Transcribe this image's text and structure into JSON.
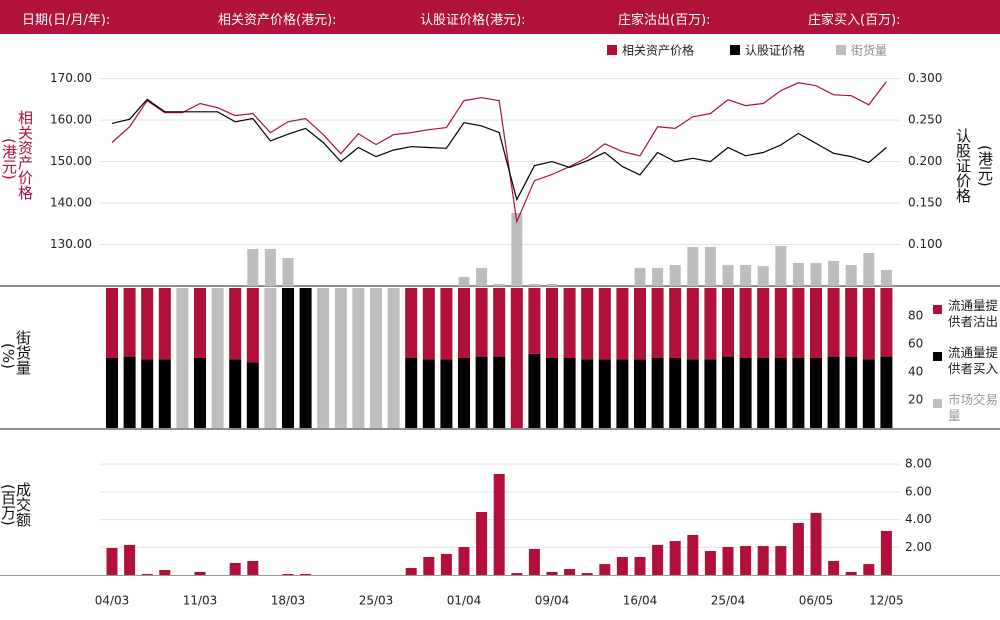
{
  "header": {
    "fields": [
      "日期(日/月/年):",
      "相关资产价格(港元):",
      "认股证价格(港元):",
      "庄家沽出(百万):",
      "庄家买入(百万):"
    ]
  },
  "chart_data": [
    {
      "type": "line",
      "ylabel": "相关资产价格",
      "yunit": "(港元)",
      "y2label": "认股证价格",
      "y2unit": "(港元)",
      "ylim": [
        120,
        174.5
      ],
      "yticks": [
        {
          "value": 130,
          "label": "130.00"
        },
        {
          "value": 140,
          "label": "140.00"
        },
        {
          "value": 150,
          "label": "150.00"
        },
        {
          "value": 160,
          "label": "160.00"
        },
        {
          "value": 170,
          "label": "170.00"
        }
      ],
      "y2lim": [
        0.05,
        0.3225
      ],
      "y2ticks": [
        {
          "value": 0.1,
          "label": "0.100"
        },
        {
          "value": 0.15,
          "label": "0.150"
        },
        {
          "value": 0.2,
          "label": "0.200"
        },
        {
          "value": 0.25,
          "label": "0.250"
        },
        {
          "value": 0.3,
          "label": "0.300"
        }
      ],
      "y3lim": [
        0,
        100
      ],
      "grid": true,
      "series": [
        {
          "name": "相关资产价格",
          "color": "#b0103a",
          "values": [
            154.6,
            158.4,
            164.7,
            161.8,
            161.8,
            164.0,
            163.0,
            161.1,
            161.6,
            157.0,
            159.6,
            160.4,
            156.5,
            151.9,
            156.7,
            154.1,
            156.5,
            157.0,
            157.7,
            158.2,
            164.7,
            165.4,
            164.7,
            135.5,
            145.4,
            146.9,
            148.8,
            151.0,
            154.3,
            152.4,
            151.4,
            158.4,
            158.0,
            160.8,
            161.6,
            164.9,
            163.5,
            164.0,
            167.1,
            169.0,
            168.3,
            166.1,
            165.9,
            163.7,
            169.3
          ]
        },
        {
          "name": "认股证价格",
          "color": "#000000",
          "axis": "y2",
          "values": [
            0.246,
            0.251,
            0.275,
            0.26,
            0.26,
            0.26,
            0.26,
            0.248,
            0.252,
            0.225,
            0.233,
            0.24,
            0.223,
            0.2,
            0.217,
            0.206,
            0.214,
            0.218,
            0.217,
            0.216,
            0.247,
            0.243,
            0.235,
            0.154,
            0.195,
            0.2,
            0.193,
            0.201,
            0.211,
            0.194,
            0.184,
            0.211,
            0.2,
            0.204,
            0.2,
            0.217,
            0.207,
            0.211,
            0.22,
            0.234,
            0.222,
            0.21,
            0.206,
            0.199,
            0.217
          ]
        },
        {
          "name": "街货量",
          "color": "#bdbdbd",
          "type": "bar",
          "axis": "y3",
          "values": [
            0,
            0,
            0,
            0,
            0,
            0,
            0,
            0,
            16.4,
            16.4,
            12.4,
            0,
            0,
            0,
            0,
            0,
            0,
            0,
            0,
            0,
            4.0,
            8.0,
            0.9,
            32.3,
            0.9,
            0.9,
            0,
            0,
            0,
            0,
            8.0,
            8.0,
            9.3,
            17.3,
            17.3,
            9.3,
            9.3,
            8.8,
            17.7,
            10.2,
            10.2,
            11.1,
            9.3,
            14.6,
            7.1
          ]
        }
      ]
    },
    {
      "type": "stacked_bar",
      "ylabel": "街货量",
      "yunit": "(%)",
      "ylim": [
        0,
        100
      ],
      "yticks": [
        20,
        40,
        60,
        80
      ],
      "series": [
        {
          "name": "流通量提供者沽出",
          "color": "#b0103a",
          "values": [
            50,
            49,
            51,
            51,
            0,
            50,
            0,
            51,
            53,
            0,
            0,
            0,
            0,
            0,
            0,
            0,
            0,
            50,
            51,
            51,
            50,
            49,
            49,
            100,
            47,
            50,
            50,
            51,
            51,
            51,
            51,
            50,
            50,
            51,
            51,
            49,
            50,
            50,
            50,
            50,
            50,
            49,
            49,
            51,
            49
          ]
        },
        {
          "name": "流通量提供者买入",
          "color": "#000000",
          "values": [
            50,
            51,
            49,
            49,
            0,
            50,
            0,
            49,
            47,
            0,
            100,
            100,
            0,
            0,
            0,
            0,
            0,
            50,
            49,
            49,
            50,
            51,
            51,
            0,
            53,
            50,
            50,
            49,
            49,
            49,
            49,
            50,
            50,
            49,
            49,
            51,
            50,
            50,
            50,
            50,
            50,
            51,
            51,
            49,
            51
          ]
        },
        {
          "name": "市场交易量",
          "color": "#bdbdbd",
          "values": [
            0,
            0,
            0,
            0,
            100,
            0,
            100,
            0,
            0,
            100,
            0,
            0,
            100,
            100,
            100,
            100,
            100,
            0,
            0,
            0,
            0,
            0,
            0,
            0,
            0,
            0,
            0,
            0,
            0,
            0,
            0,
            0,
            0,
            0,
            0,
            0,
            0,
            0,
            0,
            0,
            0,
            0,
            0,
            0,
            0
          ]
        }
      ]
    },
    {
      "type": "bar",
      "ylabel": "成交额",
      "yunit": "(百万)",
      "categories": [
        "04/03",
        null,
        null,
        null,
        null,
        "11/03",
        null,
        null,
        null,
        null,
        "18/03",
        null,
        null,
        null,
        null,
        "25/03",
        null,
        null,
        null,
        null,
        "01/04",
        null,
        null,
        null,
        null,
        "09/04",
        null,
        null,
        null,
        null,
        "16/04",
        null,
        null,
        null,
        null,
        "25/04",
        null,
        null,
        null,
        null,
        "06/05",
        null,
        null,
        null,
        "12/05"
      ],
      "values": [
        1.95,
        2.17,
        0.07,
        0.36,
        0,
        0.22,
        0,
        0.87,
        1.01,
        0,
        0.07,
        0.07,
        0,
        0,
        0,
        0,
        0,
        0.51,
        1.3,
        1.52,
        2.02,
        4.55,
        7.29,
        0.14,
        1.88,
        0.22,
        0.43,
        0.14,
        0.79,
        1.3,
        1.3,
        2.17,
        2.45,
        2.89,
        1.73,
        2.02,
        2.09,
        2.09,
        2.09,
        3.75,
        4.48,
        1.01,
        0.22,
        0.79,
        3.18
      ],
      "color": "#b0103a",
      "ylim": [
        0,
        8.66
      ],
      "yticks": [
        {
          "value": 2,
          "label": "2.00"
        },
        {
          "value": 4,
          "label": "4.00"
        },
        {
          "value": 6,
          "label": "6.00"
        },
        {
          "value": 8,
          "label": "8.00"
        }
      ],
      "grid": true
    }
  ]
}
